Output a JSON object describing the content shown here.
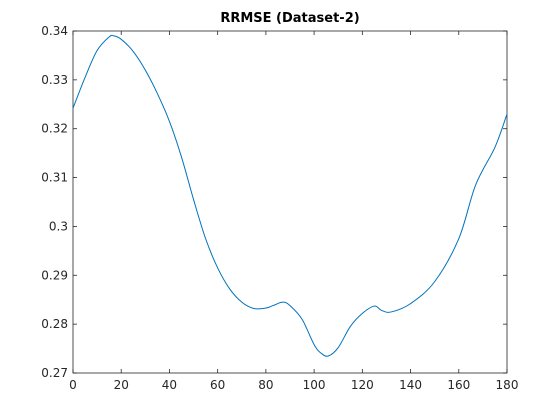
{
  "chart_data": {
    "type": "line",
    "title": "RRMSE (Dataset-2)",
    "xlabel": "",
    "ylabel": "",
    "xlim": [
      0,
      180
    ],
    "ylim": [
      0.27,
      0.34
    ],
    "xticks": [
      0,
      20,
      40,
      60,
      80,
      100,
      120,
      140,
      160,
      180
    ],
    "xtick_labels": [
      "0",
      "20",
      "40",
      "60",
      "80",
      "100",
      "120",
      "140",
      "160",
      "180"
    ],
    "yticks": [
      0.27,
      0.28,
      0.29,
      0.3,
      0.31,
      0.32,
      0.33,
      0.34
    ],
    "ytick_labels": [
      "0.27",
      "0.28",
      "0.29",
      "0.3",
      "0.31",
      "0.32",
      "0.33",
      "0.34"
    ],
    "grid": false,
    "series": [
      {
        "color": "#0072BD",
        "x": [
          0,
          5,
          10,
          15,
          17,
          20,
          25,
          30,
          35,
          40,
          45,
          50,
          55,
          60,
          65,
          70,
          75,
          80,
          83,
          87,
          90,
          95,
          100,
          103,
          106,
          110,
          115,
          120,
          125,
          128,
          132,
          140,
          150,
          160,
          167,
          175,
          180
        ],
        "y": [
          0.3242,
          0.3305,
          0.336,
          0.3388,
          0.339,
          0.3383,
          0.3358,
          0.332,
          0.3272,
          0.3215,
          0.3142,
          0.3055,
          0.2975,
          0.2915,
          0.2872,
          0.2845,
          0.2832,
          0.2833,
          0.2838,
          0.2845,
          0.2838,
          0.281,
          0.2758,
          0.274,
          0.2735,
          0.2752,
          0.2795,
          0.2822,
          0.2837,
          0.2828,
          0.2825,
          0.2842,
          0.2887,
          0.2975,
          0.3085,
          0.3162,
          0.323
        ]
      }
    ]
  }
}
